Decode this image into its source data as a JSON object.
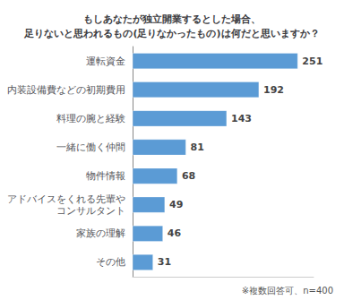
{
  "chart_data": {
    "type": "bar",
    "orientation": "horizontal",
    "title": "もしあなたが独立開業するとした場合、\n足りないと思われるもの(足りなかったもの)は何だと思いますか？",
    "categories": [
      "運転資金",
      "内装設備費などの初期費用",
      "料理の腕と経験",
      "一緒に働く仲間",
      "物件情報",
      "アドバイスをくれる先輩や\nコンサルタント",
      "家族の理解",
      "その他"
    ],
    "values": [
      251,
      192,
      143,
      81,
      68,
      49,
      46,
      31
    ],
    "color": "#5b9bd5",
    "xlim": [
      0,
      275
    ],
    "xticks": [],
    "grid": false,
    "data_labels": true,
    "tick_labels": "y",
    "annotations": [
      "※複数回答可、n=400"
    ]
  }
}
